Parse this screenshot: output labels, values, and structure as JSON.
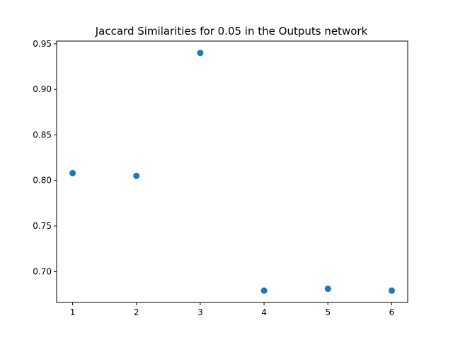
{
  "chart_data": {
    "type": "scatter",
    "title": "Jaccard Similarities for 0.05 in the Outputs network",
    "xlabel": "",
    "ylabel": "",
    "x": [
      1,
      2,
      3,
      4,
      5,
      6
    ],
    "y": [
      0.808,
      0.805,
      0.94,
      0.679,
      0.681,
      0.679
    ],
    "xlim": [
      0.75,
      6.25
    ],
    "ylim": [
      0.666,
      0.953
    ],
    "xticks": [
      1,
      2,
      3,
      4,
      5,
      6
    ],
    "yticks": [
      0.7,
      0.75,
      0.8,
      0.85,
      0.9,
      0.95
    ],
    "grid": false,
    "marker_color": "#1f77b4"
  }
}
